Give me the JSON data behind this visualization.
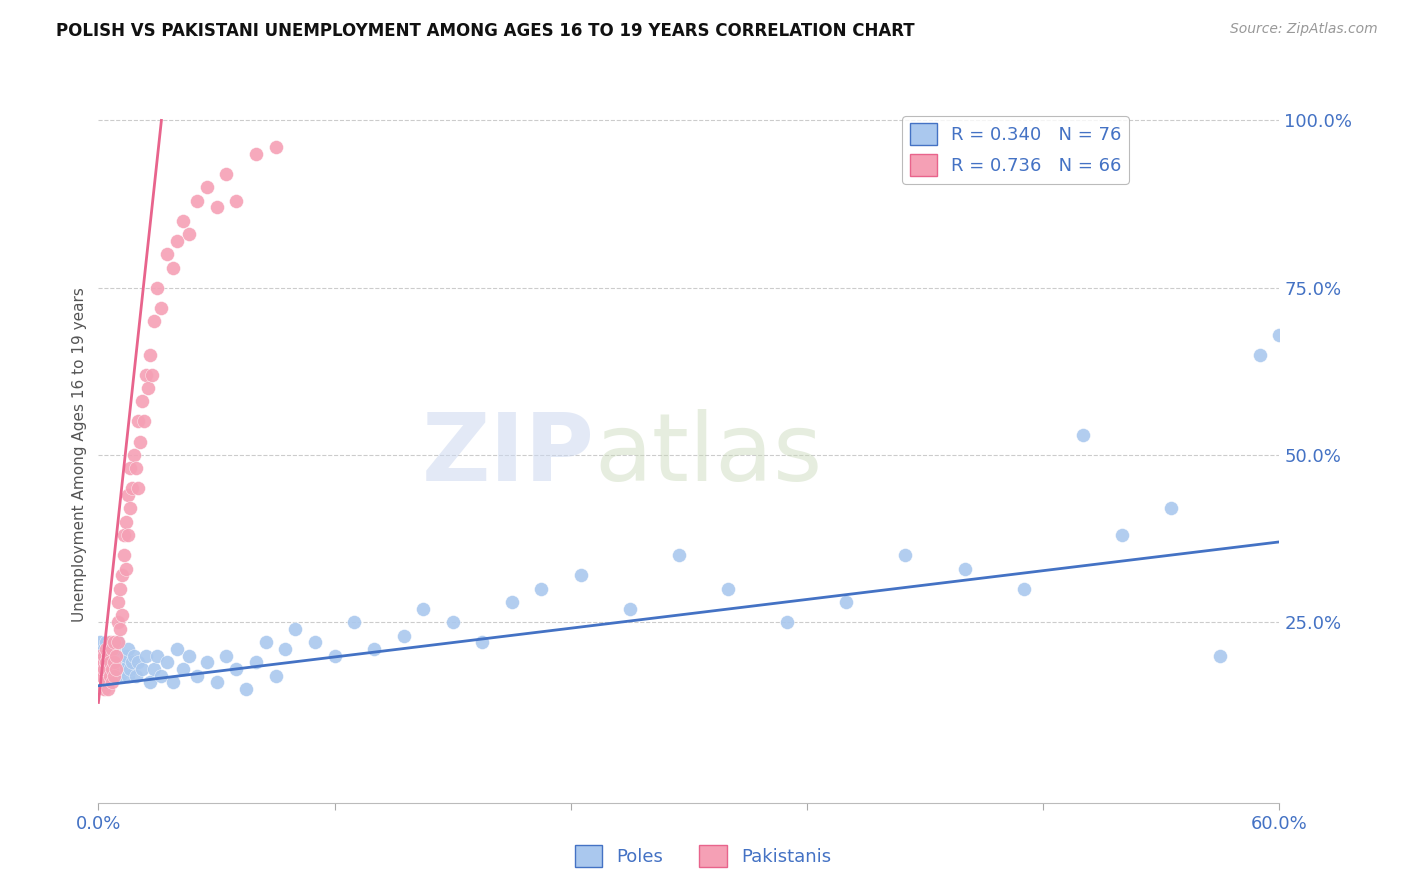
{
  "title": "POLISH VS PAKISTANI UNEMPLOYMENT AMONG AGES 16 TO 19 YEARS CORRELATION CHART",
  "source": "Source: ZipAtlas.com",
  "ylabel_label": "Unemployment Among Ages 16 to 19 years",
  "x_min": 0.0,
  "x_max": 0.6,
  "y_min": 0.0,
  "y_max": 1.0,
  "x_ticks": [
    0.0,
    0.12,
    0.24,
    0.36,
    0.48,
    0.6
  ],
  "x_tick_labels": [
    "0.0%",
    "",
    "",
    "",
    "",
    "60.0%"
  ],
  "y_ticks": [
    0.0,
    0.25,
    0.5,
    0.75,
    1.0
  ],
  "y_tick_labels": [
    "",
    "25.0%",
    "50.0%",
    "75.0%",
    "100.0%"
  ],
  "poles_color": "#aac8ee",
  "pakistanis_color": "#f5a0b5",
  "poles_line_color": "#4472c4",
  "pakistanis_line_color": "#e8648c",
  "poles_R": 0.34,
  "poles_N": 76,
  "pakistanis_R": 0.736,
  "pakistanis_N": 66,
  "watermark_zip": "ZIP",
  "watermark_atlas": "atlas",
  "poles_x": [
    0.001,
    0.002,
    0.003,
    0.003,
    0.004,
    0.004,
    0.005,
    0.005,
    0.006,
    0.006,
    0.007,
    0.007,
    0.008,
    0.008,
    0.009,
    0.009,
    0.01,
    0.01,
    0.011,
    0.012,
    0.013,
    0.014,
    0.015,
    0.015,
    0.016,
    0.017,
    0.018,
    0.019,
    0.02,
    0.022,
    0.024,
    0.026,
    0.028,
    0.03,
    0.032,
    0.035,
    0.038,
    0.04,
    0.043,
    0.046,
    0.05,
    0.055,
    0.06,
    0.065,
    0.07,
    0.075,
    0.08,
    0.085,
    0.09,
    0.095,
    0.1,
    0.11,
    0.12,
    0.13,
    0.14,
    0.155,
    0.165,
    0.18,
    0.195,
    0.21,
    0.225,
    0.245,
    0.27,
    0.295,
    0.32,
    0.35,
    0.38,
    0.41,
    0.44,
    0.47,
    0.5,
    0.52,
    0.545,
    0.57,
    0.59,
    0.6
  ],
  "poles_y": [
    0.22,
    0.2,
    0.19,
    0.21,
    0.18,
    0.22,
    0.17,
    0.2,
    0.19,
    0.21,
    0.18,
    0.2,
    0.17,
    0.21,
    0.18,
    0.2,
    0.19,
    0.22,
    0.17,
    0.19,
    0.18,
    0.2,
    0.17,
    0.21,
    0.18,
    0.19,
    0.2,
    0.17,
    0.19,
    0.18,
    0.2,
    0.16,
    0.18,
    0.2,
    0.17,
    0.19,
    0.16,
    0.21,
    0.18,
    0.2,
    0.17,
    0.19,
    0.16,
    0.2,
    0.18,
    0.15,
    0.19,
    0.22,
    0.17,
    0.21,
    0.24,
    0.22,
    0.2,
    0.25,
    0.21,
    0.23,
    0.27,
    0.25,
    0.22,
    0.28,
    0.3,
    0.32,
    0.27,
    0.35,
    0.3,
    0.25,
    0.28,
    0.35,
    0.33,
    0.3,
    0.53,
    0.38,
    0.42,
    0.2,
    0.65,
    0.68
  ],
  "pakistanis_x": [
    0.001,
    0.001,
    0.002,
    0.002,
    0.003,
    0.003,
    0.003,
    0.004,
    0.004,
    0.004,
    0.005,
    0.005,
    0.005,
    0.006,
    0.006,
    0.006,
    0.007,
    0.007,
    0.007,
    0.008,
    0.008,
    0.008,
    0.009,
    0.009,
    0.01,
    0.01,
    0.01,
    0.011,
    0.011,
    0.012,
    0.012,
    0.013,
    0.013,
    0.014,
    0.014,
    0.015,
    0.015,
    0.016,
    0.016,
    0.017,
    0.018,
    0.019,
    0.02,
    0.02,
    0.021,
    0.022,
    0.023,
    0.024,
    0.025,
    0.026,
    0.027,
    0.028,
    0.03,
    0.032,
    0.035,
    0.038,
    0.04,
    0.043,
    0.046,
    0.05,
    0.055,
    0.06,
    0.065,
    0.07,
    0.08,
    0.09
  ],
  "pakistanis_y": [
    0.18,
    0.2,
    0.17,
    0.19,
    0.15,
    0.18,
    0.2,
    0.16,
    0.19,
    0.21,
    0.15,
    0.18,
    0.2,
    0.17,
    0.19,
    0.22,
    0.16,
    0.18,
    0.21,
    0.17,
    0.19,
    0.22,
    0.18,
    0.2,
    0.22,
    0.25,
    0.28,
    0.24,
    0.3,
    0.26,
    0.32,
    0.35,
    0.38,
    0.33,
    0.4,
    0.38,
    0.44,
    0.42,
    0.48,
    0.45,
    0.5,
    0.48,
    0.45,
    0.55,
    0.52,
    0.58,
    0.55,
    0.62,
    0.6,
    0.65,
    0.62,
    0.7,
    0.75,
    0.72,
    0.8,
    0.78,
    0.82,
    0.85,
    0.83,
    0.88,
    0.9,
    0.87,
    0.92,
    0.88,
    0.95,
    0.96
  ],
  "pk_line_x": [
    0.0,
    0.032
  ],
  "pk_line_y": [
    0.13,
    1.0
  ],
  "poles_line_x": [
    0.0,
    0.6
  ],
  "poles_line_y": [
    0.155,
    0.37
  ]
}
